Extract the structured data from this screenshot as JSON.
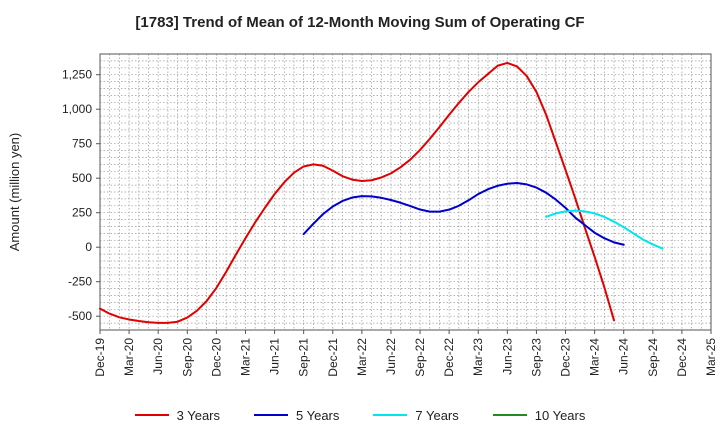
{
  "chart_data": {
    "type": "line",
    "title": "[1783]  Trend of Mean of 12-Month Moving Sum of Operating CF",
    "xlabel": "",
    "ylabel": "Amount (million yen)",
    "ylim": [
      -600,
      1400
    ],
    "yticks": [
      -500,
      -250,
      0,
      250,
      500,
      750,
      1000,
      1250
    ],
    "ytick_labels": [
      "-500",
      "-250",
      "0",
      "250",
      "500",
      "750",
      "1,000",
      "1,250"
    ],
    "xticks": [
      "Dec-19",
      "Mar-20",
      "Jun-20",
      "Sep-20",
      "Dec-20",
      "Mar-21",
      "Jun-21",
      "Sep-21",
      "Dec-21",
      "Mar-22",
      "Jun-22",
      "Sep-22",
      "Dec-22",
      "Mar-23",
      "Jun-23",
      "Sep-23",
      "Dec-23",
      "Mar-24",
      "Jun-24",
      "Sep-24",
      "Dec-24",
      "Mar-25"
    ],
    "x_index_range": [
      0,
      63
    ],
    "grid": true,
    "legend_position": "bottom",
    "series": [
      {
        "name": "3 Years",
        "color": "#e00000",
        "start_index": 0,
        "values": [
          -445,
          -482,
          -508,
          -524,
          -535,
          -544,
          -548,
          -548,
          -540,
          -510,
          -460,
          -390,
          -295,
          -180,
          -55,
          65,
          180,
          285,
          385,
          470,
          540,
          585,
          600,
          590,
          555,
          515,
          490,
          480,
          485,
          505,
          535,
          580,
          635,
          705,
          785,
          870,
          960,
          1045,
          1125,
          1195,
          1255,
          1315,
          1335,
          1310,
          1240,
          1125,
          960,
          760,
          560,
          355,
          140,
          -70,
          -290,
          -530
        ]
      },
      {
        "name": "5 Years",
        "color": "#0000cc",
        "start_index": 21,
        "values": [
          95,
          170,
          240,
          295,
          335,
          360,
          370,
          368,
          358,
          342,
          322,
          298,
          273,
          258,
          258,
          272,
          300,
          340,
          385,
          420,
          445,
          460,
          465,
          455,
          432,
          395,
          345,
          285,
          215,
          160,
          105,
          65,
          35,
          18
        ]
      },
      {
        "name": "7 Years",
        "color": "#00e5ee",
        "start_index": 46,
        "values": [
          220,
          245,
          260,
          265,
          260,
          245,
          220,
          185,
          145,
          100,
          55,
          20,
          -10
        ]
      },
      {
        "name": "10 Years",
        "color": "#228b22",
        "start_index": 53,
        "values": []
      }
    ]
  }
}
